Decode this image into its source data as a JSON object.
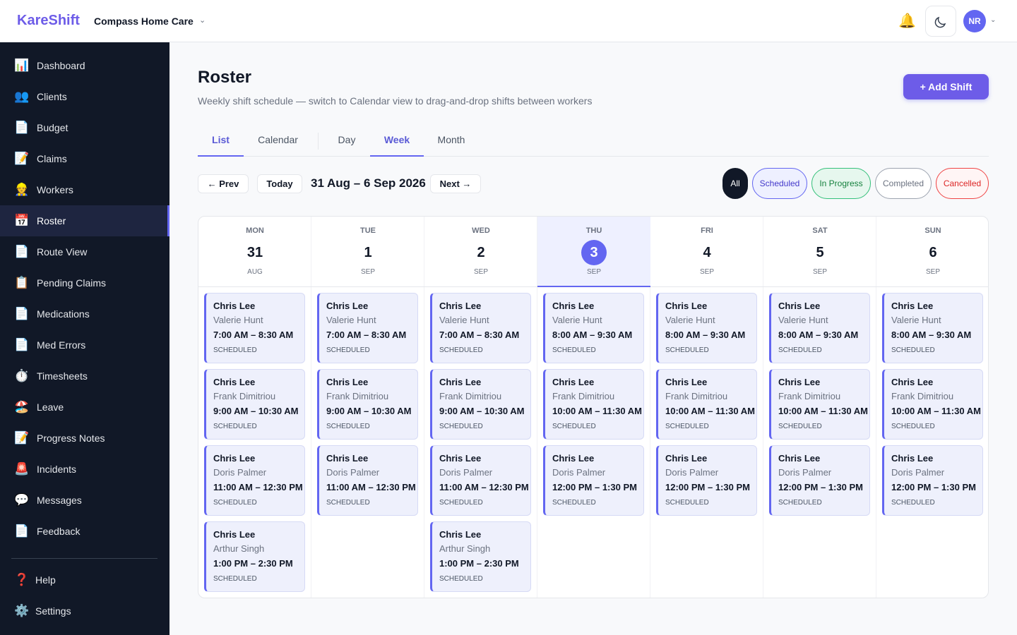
{
  "header": {
    "brand": "KareShift",
    "org": "Compass Home Care",
    "avatar": "NR"
  },
  "sidebar": {
    "items": [
      {
        "icon": "📊",
        "label": "Dashboard"
      },
      {
        "icon": "👥",
        "label": "Clients"
      },
      {
        "icon": "📄",
        "label": "Budget"
      },
      {
        "icon": "📝",
        "label": "Claims"
      },
      {
        "icon": "👷",
        "label": "Workers"
      },
      {
        "icon": "📅",
        "label": "Roster"
      },
      {
        "icon": "📄",
        "label": "Route View"
      },
      {
        "icon": "📋",
        "label": "Pending Claims"
      },
      {
        "icon": "📄",
        "label": "Medications"
      },
      {
        "icon": "📄",
        "label": "Med Errors"
      },
      {
        "icon": "⏱️",
        "label": "Timesheets"
      },
      {
        "icon": "🏖️",
        "label": "Leave"
      },
      {
        "icon": "📝",
        "label": "Progress Notes"
      },
      {
        "icon": "🚨",
        "label": "Incidents"
      },
      {
        "icon": "💬",
        "label": "Messages"
      },
      {
        "icon": "📄",
        "label": "Feedback"
      }
    ],
    "footer": [
      {
        "icon": "❓",
        "label": "Help"
      },
      {
        "icon": "⚙️",
        "label": "Settings"
      }
    ]
  },
  "page": {
    "title": "Roster",
    "subtitle": "Weekly shift schedule — switch to Calendar view to drag-and-drop shifts between workers",
    "add_button": "+ Add Shift"
  },
  "tabs": {
    "views": [
      "List",
      "Calendar"
    ],
    "ranges": [
      "Day",
      "Week",
      "Month"
    ]
  },
  "toolbar": {
    "prev": "← Prev",
    "today": "Today",
    "range": "31 Aug – 6 Sep 2026",
    "next": "Next →",
    "filters": [
      "All",
      "Scheduled",
      "In Progress",
      "Completed",
      "Cancelled"
    ]
  },
  "days": [
    {
      "dow": "MON",
      "date": 31,
      "month": "AUG",
      "shifts": [
        {
          "worker": "Chris Lee",
          "client": "Valerie Hunt",
          "time": "7:00 AM – 8:30 AM",
          "status": "SCHEDULED"
        },
        {
          "worker": "Chris Lee",
          "client": "Frank Dimitriou",
          "time": "9:00 AM – 10:30 AM",
          "status": "SCHEDULED"
        },
        {
          "worker": "Chris Lee",
          "client": "Doris Palmer",
          "time": "11:00 AM – 12:30 PM",
          "status": "SCHEDULED"
        },
        {
          "worker": "Chris Lee",
          "client": "Arthur Singh",
          "time": "1:00 PM – 2:30 PM",
          "status": "SCHEDULED"
        }
      ]
    },
    {
      "dow": "TUE",
      "date": 1,
      "month": "SEP",
      "shifts": [
        {
          "worker": "Chris Lee",
          "client": "Valerie Hunt",
          "time": "7:00 AM – 8:30 AM",
          "status": "SCHEDULED"
        },
        {
          "worker": "Chris Lee",
          "client": "Frank Dimitriou",
          "time": "9:00 AM – 10:30 AM",
          "status": "SCHEDULED"
        },
        {
          "worker": "Chris Lee",
          "client": "Doris Palmer",
          "time": "11:00 AM – 12:30 PM",
          "status": "SCHEDULED"
        }
      ]
    },
    {
      "dow": "WED",
      "date": 2,
      "month": "SEP",
      "shifts": [
        {
          "worker": "Chris Lee",
          "client": "Valerie Hunt",
          "time": "7:00 AM – 8:30 AM",
          "status": "SCHEDULED"
        },
        {
          "worker": "Chris Lee",
          "client": "Frank Dimitriou",
          "time": "9:00 AM – 10:30 AM",
          "status": "SCHEDULED"
        },
        {
          "worker": "Chris Lee",
          "client": "Doris Palmer",
          "time": "11:00 AM – 12:30 PM",
          "status": "SCHEDULED"
        },
        {
          "worker": "Chris Lee",
          "client": "Arthur Singh",
          "time": "1:00 PM – 2:30 PM",
          "status": "SCHEDULED"
        }
      ]
    },
    {
      "dow": "THU",
      "date": 3,
      "month": "SEP",
      "shifts": [
        {
          "worker": "Chris Lee",
          "client": "Valerie Hunt",
          "time": "8:00 AM – 9:30 AM",
          "status": "SCHEDULED"
        },
        {
          "worker": "Chris Lee",
          "client": "Frank Dimitriou",
          "time": "10:00 AM – 11:30 AM",
          "status": "SCHEDULED"
        },
        {
          "worker": "Chris Lee",
          "client": "Doris Palmer",
          "time": "12:00 PM – 1:30 PM",
          "status": "SCHEDULED"
        }
      ]
    },
    {
      "dow": "FRI",
      "date": 4,
      "month": "SEP",
      "shifts": [
        {
          "worker": "Chris Lee",
          "client": "Valerie Hunt",
          "time": "8:00 AM – 9:30 AM",
          "status": "SCHEDULED"
        },
        {
          "worker": "Chris Lee",
          "client": "Frank Dimitriou",
          "time": "10:00 AM – 11:30 AM",
          "status": "SCHEDULED"
        },
        {
          "worker": "Chris Lee",
          "client": "Doris Palmer",
          "time": "12:00 PM – 1:30 PM",
          "status": "SCHEDULED"
        }
      ]
    },
    {
      "dow": "SAT",
      "date": 5,
      "month": "SEP",
      "shifts": [
        {
          "worker": "Chris Lee",
          "client": "Valerie Hunt",
          "time": "8:00 AM – 9:30 AM",
          "status": "SCHEDULED"
        },
        {
          "worker": "Chris Lee",
          "client": "Frank Dimitriou",
          "time": "10:00 AM – 11:30 AM",
          "status": "SCHEDULED"
        },
        {
          "worker": "Chris Lee",
          "client": "Doris Palmer",
          "time": "12:00 PM – 1:30 PM",
          "status": "SCHEDULED"
        }
      ]
    },
    {
      "dow": "SUN",
      "date": 6,
      "month": "SEP",
      "shifts": [
        {
          "worker": "Chris Lee",
          "client": "Valerie Hunt",
          "time": "8:00 AM – 9:30 AM",
          "status": "SCHEDULED"
        },
        {
          "worker": "Chris Lee",
          "client": "Frank Dimitriou",
          "time": "10:00 AM – 11:30 AM",
          "status": "SCHEDULED"
        },
        {
          "worker": "Chris Lee",
          "client": "Doris Palmer",
          "time": "12:00 PM – 1:30 PM",
          "status": "SCHEDULED"
        }
      ]
    }
  ]
}
